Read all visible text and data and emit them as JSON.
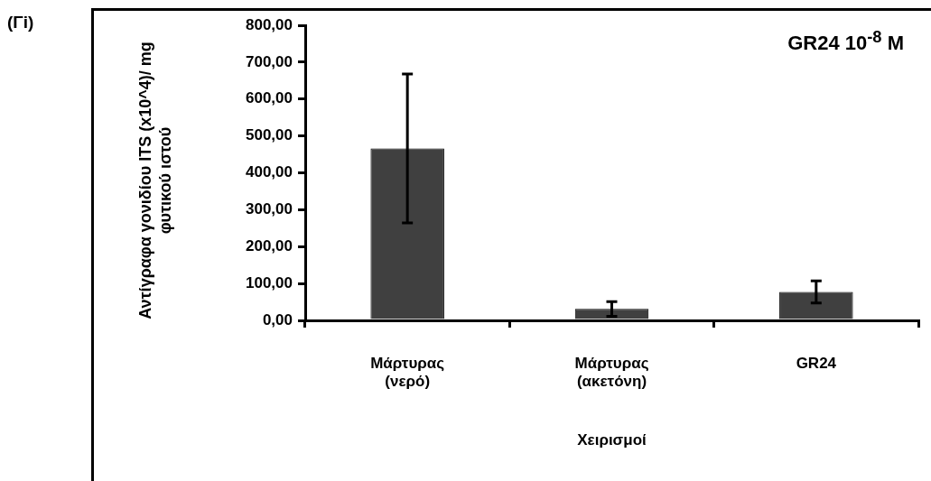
{
  "chart_data": {
    "type": "bar",
    "title": "GR24 10$^{-8}$ M",
    "xlabel": "Χειρισμοί",
    "ylabel": "Αντίγραφα γονιδίου ITS (x10^4)/ mg φυτικού ιστού",
    "annotations": [
      "(Γi)"
    ],
    "categories": [
      "Μάρτυρας (νερό)",
      "Μάρτυρας (ακετόνη)",
      "GR24"
    ],
    "values": [
      466,
      31,
      77
    ],
    "errors": [
      202,
      20,
      30
    ],
    "color": "#404040",
    "ylim": [
      0,
      800
    ],
    "yticks": [
      {
        "value": 0,
        "label": "0,00"
      },
      {
        "value": 100,
        "label": "100,00"
      },
      {
        "value": 200,
        "label": "200,00"
      },
      {
        "value": 300,
        "label": "300,00"
      },
      {
        "value": 400,
        "label": "400,00"
      },
      {
        "value": 500,
        "label": "500,00"
      },
      {
        "value": 600,
        "label": "600,00"
      },
      {
        "value": 700,
        "label": "700,00"
      },
      {
        "value": 800,
        "label": "800,00"
      }
    ],
    "grid": false,
    "legend": false
  }
}
